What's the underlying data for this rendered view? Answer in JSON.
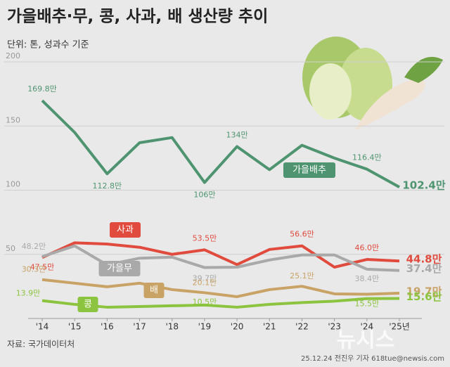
{
  "chart_data": {
    "type": "line",
    "title": "가을배추·무, 콩, 사과, 배 생산량 추이",
    "subtitle": "단위: 톤, 성과수 기준",
    "source": "자료: 국가데이터처",
    "credit": "25.12.24 전진우 기자 618tue@newsis.com",
    "watermark": "뉴시스",
    "categories": [
      "'14",
      "'15",
      "'16",
      "'17",
      "'18",
      "'19",
      "'20",
      "'21",
      "'22",
      "'23",
      "'24",
      "'25년"
    ],
    "ylim": [
      0,
      200
    ],
    "yticks": [
      50,
      100,
      150,
      200
    ],
    "grid": true,
    "series": [
      {
        "name": "가을배추",
        "color": "#4f9470",
        "values": [
          169.8,
          145,
          112.8,
          137,
          141,
          106,
          134,
          116,
          135,
          125,
          116.4,
          102.4
        ],
        "value_labels": [
          "169.8만",
          null,
          "112.8만",
          null,
          null,
          "106만",
          "134만",
          null,
          null,
          null,
          "116.4만",
          "102.4만"
        ]
      },
      {
        "name": "사과",
        "color": "#e04b3e",
        "values": [
          47.5,
          59,
          58,
          55.5,
          50,
          53.5,
          42,
          53.8,
          56.6,
          40,
          46.0,
          44.8
        ],
        "value_labels": [
          "47.5만",
          null,
          null,
          null,
          null,
          "53.5만",
          null,
          null,
          "56.6만",
          null,
          "46.0만",
          "44.8만"
        ]
      },
      {
        "name": "가을무",
        "color": "#a9a9a9",
        "values": [
          48.2,
          56.6,
          41.8,
          47,
          47.8,
          39.7,
          40,
          45.6,
          49.5,
          49.5,
          38.4,
          37.4
        ],
        "value_labels": [
          "48.2만",
          null,
          null,
          null,
          null,
          "39.7만",
          null,
          null,
          null,
          null,
          "38.4만",
          "37.4만"
        ]
      },
      {
        "name": "배",
        "color": "#c9a265",
        "values": [
          30.3,
          27.5,
          24.7,
          27.5,
          22.5,
          20.1,
          17,
          22.5,
          25.1,
          19.2,
          18.9,
          19.7
        ],
        "value_labels": [
          "30.3만",
          null,
          null,
          null,
          null,
          "20.1만",
          null,
          null,
          "25.1만",
          null,
          null,
          "19.7만"
        ]
      },
      {
        "name": "콩",
        "color": "#8cc43f",
        "values": [
          13.9,
          11,
          8.8,
          9.3,
          9.9,
          10.5,
          8.8,
          11,
          12.4,
          13.5,
          15.5,
          15.6
        ],
        "value_labels": [
          "13.9만",
          null,
          null,
          null,
          null,
          "10.5만",
          null,
          null,
          null,
          null,
          "15.5만",
          "15.6만"
        ]
      }
    ]
  }
}
